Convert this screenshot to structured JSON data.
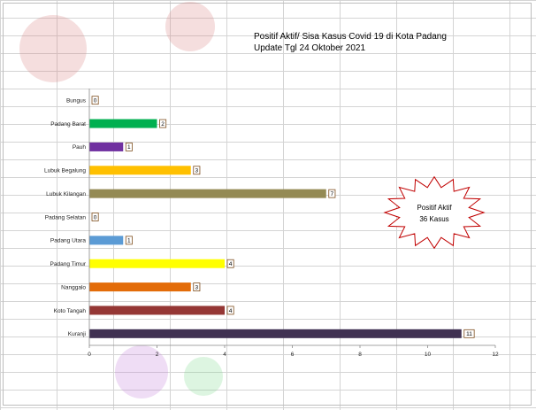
{
  "chart_data": {
    "type": "bar",
    "orientation": "horizontal",
    "title": "Positif Aktif/ Sisa Kasus Covid 19 di Kota Padang",
    "subtitle": "Update Tgl 24 Oktober 2021",
    "categories": [
      "Bungus",
      "Padang Barat",
      "Pauh",
      "Lubuk Begalung",
      "Lubuk Kilangan",
      "Padang Selatan",
      "Padang Utara",
      "Padang Timur",
      "Nanggalo",
      "Koto Tangah",
      "Kuranji"
    ],
    "values": [
      0,
      2,
      1,
      3,
      7,
      0,
      1,
      4,
      3,
      4,
      11
    ],
    "colors": [
      "#7a7a7a",
      "#00b050",
      "#7030a0",
      "#ffc000",
      "#948a54",
      "#7a7a7a",
      "#5b9bd5",
      "#ffff00",
      "#e36c09",
      "#953735",
      "#403152"
    ],
    "xlim": [
      0,
      12
    ],
    "xticks": [
      "0",
      "2",
      "4",
      "6",
      "8",
      "10",
      "12"
    ],
    "grid": false,
    "annotation": {
      "line1": "Positif  Aktif",
      "line2": "36 Kasus"
    }
  }
}
